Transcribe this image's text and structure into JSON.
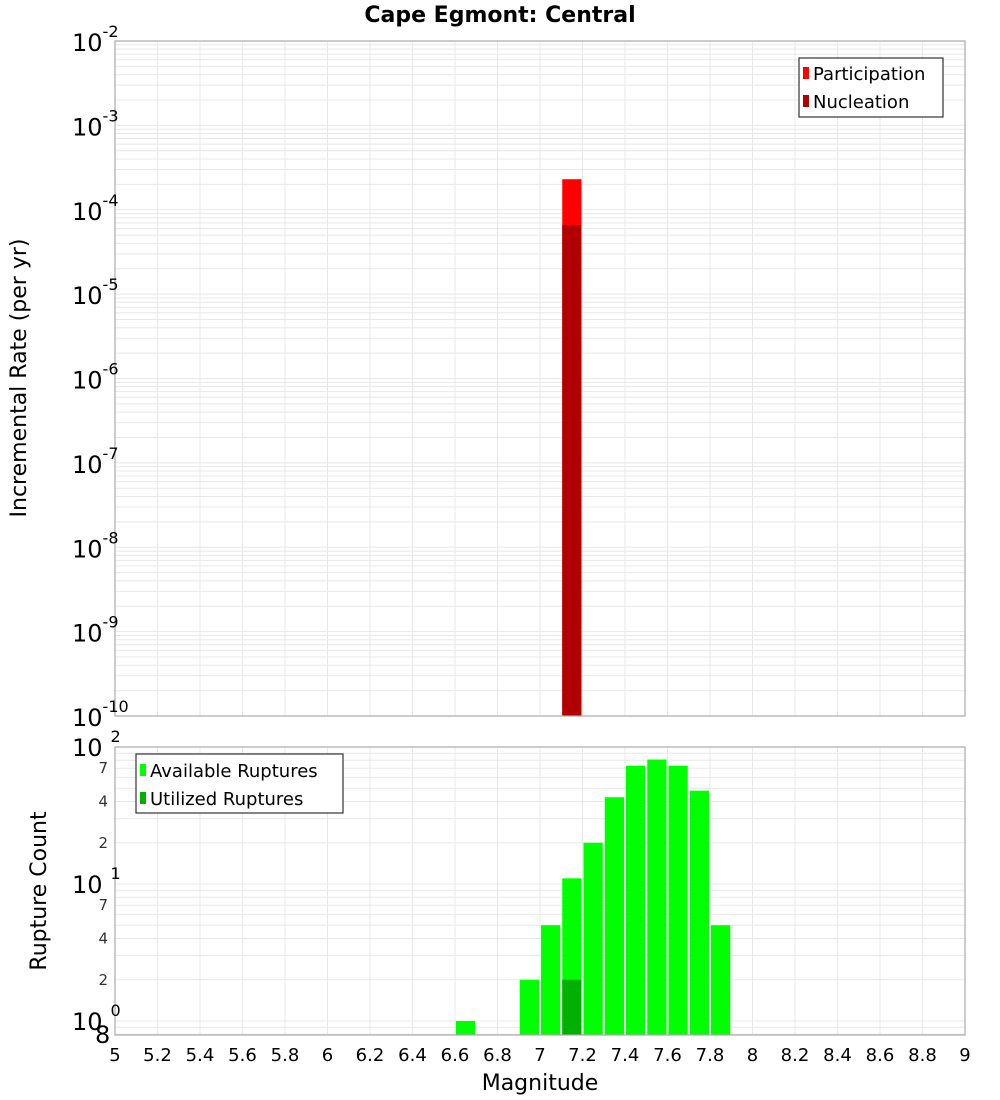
{
  "title": "Cape Egmont: Central",
  "colors": {
    "participation": "#ff0000",
    "nucleation": "#b00000",
    "available": "#00ff00",
    "utilized": "#00b000",
    "grid": "#e8e8e8",
    "frame": "#aaaaaa"
  },
  "chart_data": [
    {
      "type": "bar",
      "title": "Cape Egmont: Central",
      "xlabel": "Magnitude",
      "ylabel": "Incremental Rate (per yr)",
      "yscale": "log",
      "xlim": [
        5,
        9
      ],
      "ylim": [
        1e-10,
        0.01
      ],
      "grid": true,
      "legend_position": "top-right",
      "y_decade_ticks": [
        "10^-2",
        "10^-3",
        "10^-4",
        "10^-5",
        "10^-6",
        "10^-7",
        "10^-8",
        "10^-9",
        "10^-10"
      ],
      "bin_width": 0.1,
      "series": [
        {
          "name": "Participation",
          "color": "#ff0000",
          "x": [
            7.15
          ],
          "values": [
            0.00023
          ]
        },
        {
          "name": "Nucleation",
          "color": "#b00000",
          "x": [
            7.15
          ],
          "values": [
            6.6e-05
          ]
        }
      ]
    },
    {
      "type": "bar",
      "xlabel": "Magnitude",
      "ylabel": "Rupture Count",
      "yscale": "log",
      "xlim": [
        5,
        9
      ],
      "ylim": [
        0.8,
        100
      ],
      "grid": true,
      "legend_position": "top-left",
      "x_ticks": [
        "5",
        "5.2",
        "5.4",
        "5.6",
        "5.8",
        "6",
        "6.2",
        "6.4",
        "6.6",
        "6.8",
        "7",
        "7.2",
        "7.4",
        "7.6",
        "7.8",
        "8",
        "8.2",
        "8.4",
        "8.6",
        "8.8",
        "9"
      ],
      "y_ticks": [
        "8",
        "10^0",
        "2",
        "4",
        "7",
        "10^1",
        "2",
        "4",
        "7",
        "10^2"
      ],
      "bin_width": 0.1,
      "series": [
        {
          "name": "Available Ruptures",
          "color": "#00ff00",
          "x": [
            6.65,
            6.95,
            7.05,
            7.15,
            7.25,
            7.35,
            7.45,
            7.55,
            7.65,
            7.75,
            7.85
          ],
          "values": [
            1,
            2,
            5,
            11,
            20,
            43,
            73,
            81,
            73,
            48,
            5
          ]
        },
        {
          "name": "Utilized Ruptures",
          "color": "#00b000",
          "x": [
            7.15
          ],
          "values": [
            2
          ]
        }
      ]
    }
  ]
}
